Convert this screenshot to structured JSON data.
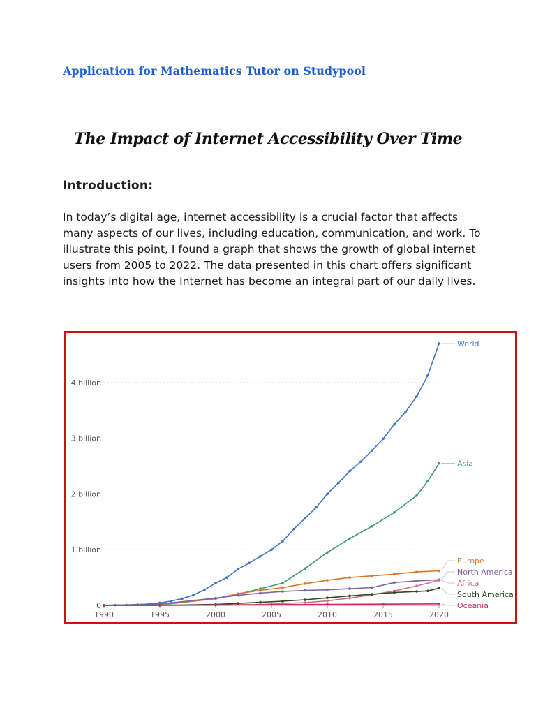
{
  "document": {
    "app_title": "Application for Mathematics Tutor on Studypool",
    "title": "The Impact of Internet Accessibility Over Time",
    "section_heading": "Introduction:",
    "intro_paragraph": "In today’s digital age, internet accessibility is a crucial factor that affects many aspects of our lives, including education, communication, and work. To illustrate this point, I found a graph that shows the growth of global internet users from 2005 to 2022. The data presented in this chart offers significant insights into how the Internet has become an integral part of our daily lives.",
    "title_color": "#1f5fcc",
    "frame_color": "#cc1111"
  },
  "chart_data": {
    "type": "line",
    "title": "",
    "xlabel": "",
    "ylabel": "",
    "xlim": [
      1990,
      2020
    ],
    "ylim": [
      0,
      4700000000
    ],
    "x_ticks": [
      1990,
      1995,
      2000,
      2005,
      2010,
      2015,
      2020
    ],
    "y_ticks": [
      0,
      1000000000,
      2000000000,
      3000000000,
      4000000000
    ],
    "y_tick_labels": [
      "0",
      "1 billion",
      "2 billion",
      "3 billion",
      "4 billion"
    ],
    "grid": true,
    "legend": "inline-right",
    "series": [
      {
        "name": "World",
        "color": "#3f74c4",
        "x": [
          1990,
          1991,
          1992,
          1993,
          1994,
          1995,
          1996,
          1997,
          1998,
          1999,
          2000,
          2001,
          2002,
          2003,
          2004,
          2005,
          2006,
          2007,
          2008,
          2009,
          2010,
          2011,
          2012,
          2013,
          2014,
          2015,
          2016,
          2017,
          2018,
          2019,
          2020
        ],
        "y": [
          2600000,
          4400000,
          7000000,
          14000000,
          25000000,
          45000000,
          77000000,
          120000000,
          185000000,
          280000000,
          400000000,
          500000000,
          650000000,
          760000000,
          880000000,
          1000000000,
          1150000000,
          1370000000,
          1560000000,
          1760000000,
          2000000000,
          2200000000,
          2410000000,
          2580000000,
          2780000000,
          2990000000,
          3250000000,
          3470000000,
          3750000000,
          4130000000,
          4700000000
        ]
      },
      {
        "name": "Asia",
        "color": "#3d9b6e",
        "x": [
          1990,
          1995,
          2000,
          2002,
          2004,
          2006,
          2008,
          2010,
          2012,
          2014,
          2016,
          2018,
          2019,
          2020
        ],
        "y": [
          500000,
          9000000,
          120000000,
          200000000,
          300000000,
          400000000,
          660000000,
          950000000,
          1200000000,
          1420000000,
          1670000000,
          1970000000,
          2230000000,
          2550000000
        ]
      },
      {
        "name": "Europe",
        "color": "#d2772b",
        "x": [
          1990,
          1995,
          2000,
          2002,
          2004,
          2006,
          2008,
          2010,
          2012,
          2014,
          2016,
          2018,
          2020
        ],
        "y": [
          1000000,
          15000000,
          120000000,
          210000000,
          270000000,
          320000000,
          390000000,
          450000000,
          500000000,
          530000000,
          560000000,
          600000000,
          620000000
        ]
      },
      {
        "name": "North America",
        "color": "#7d62a6",
        "x": [
          1990,
          1995,
          2000,
          2002,
          2004,
          2006,
          2008,
          2010,
          2012,
          2014,
          2016,
          2018,
          2020
        ],
        "y": [
          1500000,
          25000000,
          130000000,
          180000000,
          220000000,
          250000000,
          270000000,
          280000000,
          300000000,
          320000000,
          410000000,
          440000000,
          460000000
        ]
      },
      {
        "name": "Africa",
        "color": "#d06f86",
        "x": [
          1990,
          1995,
          2000,
          2004,
          2008,
          2010,
          2012,
          2014,
          2016,
          2018,
          2020
        ],
        "y": [
          0,
          300000,
          4000000,
          15000000,
          50000000,
          80000000,
          130000000,
          190000000,
          260000000,
          350000000,
          450000000
        ]
      },
      {
        "name": "South America",
        "color": "#2e4a20",
        "x": [
          1990,
          1995,
          2000,
          2002,
          2004,
          2006,
          2008,
          2010,
          2012,
          2014,
          2016,
          2018,
          2019,
          2020
        ],
        "y": [
          0,
          1000000,
          17000000,
          35000000,
          55000000,
          75000000,
          100000000,
          135000000,
          170000000,
          200000000,
          230000000,
          250000000,
          260000000,
          310000000
        ]
      },
      {
        "name": "Oceania",
        "color": "#d12a6a",
        "x": [
          1990,
          1995,
          2000,
          2005,
          2010,
          2015,
          2020
        ],
        "y": [
          0,
          1000000,
          7000000,
          14000000,
          19000000,
          23000000,
          28000000
        ]
      }
    ]
  }
}
